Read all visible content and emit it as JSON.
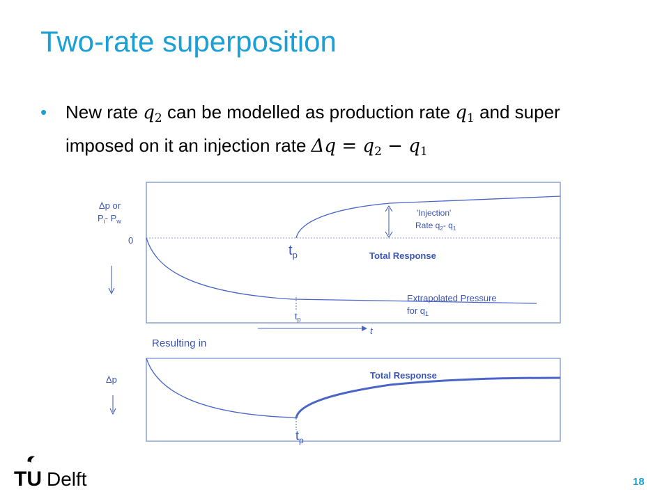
{
  "slide": {
    "title": "Two-rate superposition",
    "bullet": {
      "p1": "New rate ",
      "q2": "q",
      "q2_sub": "2",
      "p2": " can be modelled as production rate ",
      "q1": "q",
      "q1_sub": "1",
      "p3": " and super imposed on it an injection rate ",
      "eq_delta": "Δq",
      "eq_eq": " = ",
      "eq_q2": "q",
      "eq_q2_sub": "2",
      "eq_minus": " − ",
      "eq_q1": "q",
      "eq_q1_sub": "1"
    },
    "page_number": "18",
    "logo": {
      "tu": "TU",
      "delft": "Delft"
    }
  },
  "diagram": {
    "top": {
      "ylabel_line1": "Δp or",
      "ylabel_line2_a": "P",
      "ylabel_line2_sub1": "i",
      "ylabel_line2_b": "- P",
      "ylabel_line2_sub2": "w",
      "zero": "0",
      "tp_main": "t",
      "tp_main_sub": "p",
      "injection_line1": "'Injection'",
      "injection_line2_a": "Rate q",
      "injection_line2_sub1": "2",
      "injection_line2_b": "- q",
      "injection_line2_sub2": "1",
      "total_response": "Total Response",
      "extrap_line1": "Extrapolated Pressure",
      "extrap_line2_a": "for q",
      "extrap_line2_sub": "1",
      "tp_small": "t",
      "tp_small_sub": "p",
      "t_axis": "t"
    },
    "resulting_in": "Resulting in",
    "bottom": {
      "ylabel": "Δp",
      "total_response": "Total Response",
      "tp": "t",
      "tp_sub": "p"
    },
    "colors": {
      "line": "#4a64c8",
      "frame": "#8aa2d6",
      "text": "#3a55b4"
    }
  }
}
